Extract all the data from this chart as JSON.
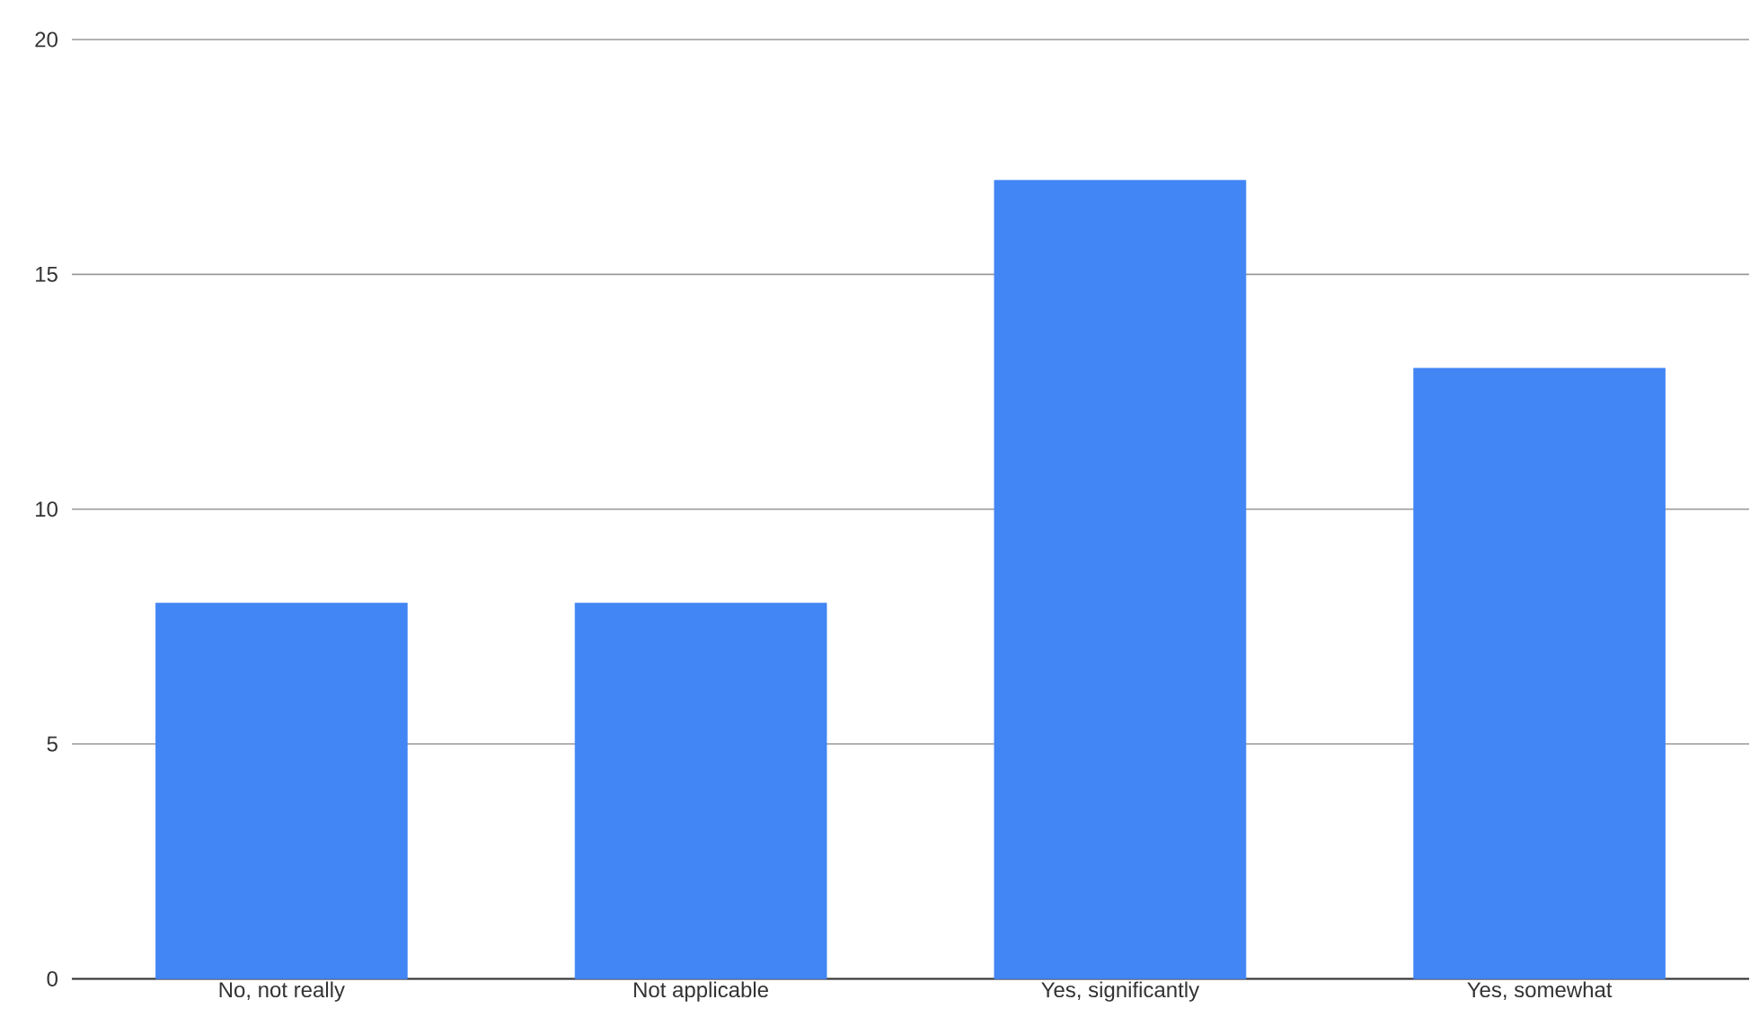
{
  "chart_data": {
    "type": "bar",
    "categories": [
      "No, not really",
      "Not applicable",
      "Yes, significantly",
      "Yes, somewhat"
    ],
    "values": [
      8,
      8,
      17,
      13
    ],
    "color": "#4285f4",
    "ylim": [
      0,
      20
    ],
    "yticks": [
      0,
      5,
      10,
      15,
      20
    ],
    "grid": "y"
  }
}
